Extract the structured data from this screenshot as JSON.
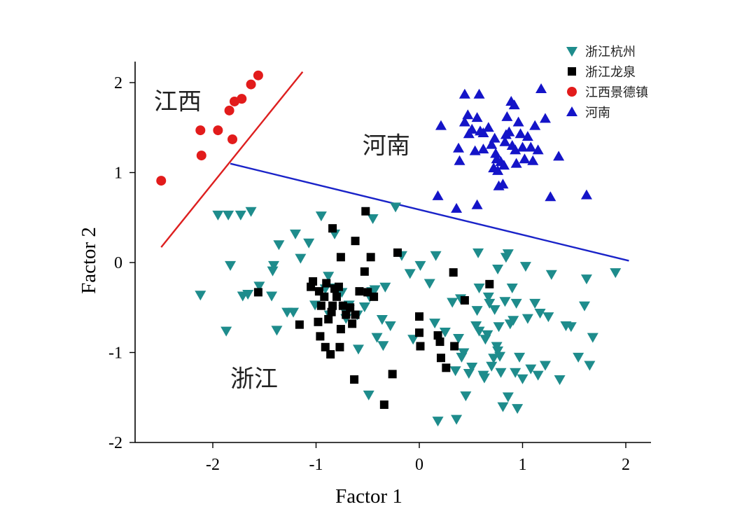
{
  "chart_data": {
    "type": "scatter",
    "xlabel": "Factor 1",
    "ylabel": "Factor 2",
    "xlim": [
      -2.7,
      2.25
    ],
    "ylim": [
      -2,
      2.25
    ],
    "xticks": [
      -2,
      -1,
      0,
      1,
      2
    ],
    "yticks": [
      -2,
      -1,
      0,
      1,
      2
    ],
    "tick_labels_x": [
      "-2",
      "-1",
      "0",
      "1",
      "2"
    ],
    "tick_labels_y": [
      "-2",
      "-1",
      "0",
      "1",
      "2"
    ],
    "grid": false,
    "legend_position": "top-right",
    "region_labels": [
      {
        "text": "江西",
        "x": -2.57,
        "y": 1.7
      },
      {
        "text": "河南",
        "x": -0.55,
        "y": 1.21
      },
      {
        "text": "浙江",
        "x": -1.83,
        "y": -1.38
      }
    ],
    "divider_lines": [
      {
        "color": "#dd1f1f",
        "points": [
          [
            -2.5,
            0.17
          ],
          [
            -1.13,
            2.12
          ]
        ]
      },
      {
        "color": "#1a23c8",
        "points": [
          [
            -1.83,
            1.1
          ],
          [
            2.03,
            0.02
          ]
        ]
      }
    ],
    "series": [
      {
        "name": "浙江杭州",
        "marker": "triangle-down",
        "color": "#1e8c8c",
        "points": [
          [
            -1.95,
            0.53
          ],
          [
            -1.85,
            0.53
          ],
          [
            -1.73,
            0.53
          ],
          [
            -1.63,
            0.57
          ],
          [
            -1.83,
            -0.03
          ],
          [
            -2.12,
            -0.36
          ],
          [
            -1.87,
            -0.76
          ],
          [
            -1.71,
            -0.37
          ],
          [
            -1.66,
            -0.35
          ],
          [
            -1.55,
            -0.26
          ],
          [
            -1.43,
            -0.37
          ],
          [
            -1.42,
            -0.09
          ],
          [
            -1.41,
            -0.03
          ],
          [
            -1.36,
            0.2
          ],
          [
            -1.28,
            -0.55
          ],
          [
            -1.38,
            -0.75
          ],
          [
            -1.22,
            -0.55
          ],
          [
            -1.2,
            0.32
          ],
          [
            -1.15,
            0.05
          ],
          [
            -1.07,
            0.22
          ],
          [
            -1.01,
            -0.47
          ],
          [
            -0.95,
            0.52
          ],
          [
            -0.91,
            -0.29
          ],
          [
            -0.88,
            -0.15
          ],
          [
            -0.87,
            -0.58
          ],
          [
            -0.83,
            -0.28
          ],
          [
            -0.82,
            0.32
          ],
          [
            -0.75,
            -0.33
          ],
          [
            -0.73,
            -0.52
          ],
          [
            -0.71,
            -0.62
          ],
          [
            -0.68,
            -0.47
          ],
          [
            -0.68,
            -0.52
          ],
          [
            -0.6,
            -0.58
          ],
          [
            -0.59,
            -0.96
          ],
          [
            -0.53,
            -0.49
          ],
          [
            -0.49,
            -1.47
          ],
          [
            -0.48,
            -0.38
          ],
          [
            -0.46,
            -0.32
          ],
          [
            -0.45,
            0.49
          ],
          [
            -0.43,
            -0.3
          ],
          [
            -0.41,
            -0.83
          ],
          [
            -0.36,
            -0.63
          ],
          [
            -0.33,
            -0.27
          ],
          [
            -0.35,
            -0.92
          ],
          [
            -0.28,
            -0.7
          ],
          [
            -0.23,
            0.62
          ],
          [
            -0.17,
            0.08
          ],
          [
            -0.09,
            -0.12
          ],
          [
            -0.06,
            -0.85
          ],
          [
            0.01,
            -0.03
          ],
          [
            0.1,
            -0.23
          ],
          [
            0.16,
            0.08
          ],
          [
            0.15,
            -0.67
          ],
          [
            0.18,
            -1.76
          ],
          [
            0.25,
            -0.77
          ],
          [
            0.32,
            -0.44
          ],
          [
            0.35,
            -1.2
          ],
          [
            0.36,
            -1.74
          ],
          [
            0.4,
            -0.4
          ],
          [
            0.41,
            -1.05
          ],
          [
            0.43,
            -1.0
          ],
          [
            0.45,
            -1.48
          ],
          [
            0.48,
            -1.23
          ],
          [
            0.51,
            -1.16
          ],
          [
            0.55,
            -0.7
          ],
          [
            0.57,
            0.11
          ],
          [
            0.58,
            -0.28
          ],
          [
            0.58,
            -0.76
          ],
          [
            0.62,
            -1.25
          ],
          [
            0.63,
            -1.28
          ],
          [
            0.64,
            -0.85
          ],
          [
            0.66,
            -0.8
          ],
          [
            0.68,
            -0.45
          ],
          [
            0.7,
            -1.15
          ],
          [
            0.72,
            -1.06
          ],
          [
            0.73,
            -0.52
          ],
          [
            0.76,
            -0.98
          ],
          [
            0.77,
            -0.71
          ],
          [
            0.78,
            -1.04
          ],
          [
            0.79,
            -1.22
          ],
          [
            0.81,
            -1.6
          ],
          [
            0.83,
            -0.43
          ],
          [
            0.84,
            0.06
          ],
          [
            0.86,
            -1.49
          ],
          [
            0.88,
            -0.68
          ],
          [
            0.9,
            -0.28
          ],
          [
            0.91,
            -0.64
          ],
          [
            0.93,
            -1.22
          ],
          [
            0.94,
            -0.45
          ],
          [
            0.95,
            -1.62
          ],
          [
            0.97,
            -1.05
          ],
          [
            1.0,
            -1.29
          ],
          [
            1.05,
            -0.62
          ],
          [
            1.08,
            -1.18
          ],
          [
            1.12,
            -0.45
          ],
          [
            1.15,
            -1.25
          ],
          [
            1.17,
            -0.56
          ],
          [
            1.22,
            -1.14
          ],
          [
            1.25,
            -0.6
          ],
          [
            1.28,
            -0.13
          ],
          [
            1.36,
            -1.3
          ],
          [
            1.42,
            -0.7
          ],
          [
            1.47,
            -0.71
          ],
          [
            1.54,
            -1.05
          ],
          [
            1.6,
            -0.48
          ],
          [
            1.62,
            -0.18
          ],
          [
            1.65,
            -1.14
          ],
          [
            1.68,
            -0.83
          ],
          [
            1.9,
            -0.11
          ],
          [
            0.38,
            -0.84
          ],
          [
            0.67,
            -0.38
          ],
          [
            0.56,
            -0.53
          ],
          [
            0.76,
            -0.07
          ],
          [
            0.86,
            0.1
          ],
          [
            1.03,
            -0.04
          ],
          [
            0.75,
            -0.93
          ]
        ]
      },
      {
        "name": "浙江龙泉",
        "marker": "square",
        "color": "#000000",
        "points": [
          [
            -0.84,
            0.38
          ],
          [
            -0.62,
            0.24
          ],
          [
            -0.76,
            0.06
          ],
          [
            -0.52,
            0.57
          ],
          [
            -0.47,
            0.06
          ],
          [
            -0.21,
            0.11
          ],
          [
            -0.53,
            -0.1
          ],
          [
            -0.5,
            -0.33
          ],
          [
            -0.44,
            -0.38
          ],
          [
            -1.56,
            -0.33
          ],
          [
            -1.16,
            -0.69
          ],
          [
            -1.05,
            -0.27
          ],
          [
            -1.03,
            -0.21
          ],
          [
            -0.97,
            -0.32
          ],
          [
            -0.95,
            -0.48
          ],
          [
            -0.92,
            -0.38
          ],
          [
            -0.9,
            -0.23
          ],
          [
            -0.88,
            -0.63
          ],
          [
            -0.85,
            -0.55
          ],
          [
            -0.84,
            -0.48
          ],
          [
            -0.82,
            -0.29
          ],
          [
            -0.8,
            -0.38
          ],
          [
            -0.78,
            -0.27
          ],
          [
            -0.76,
            -0.74
          ],
          [
            -0.74,
            -0.48
          ],
          [
            -0.71,
            -0.58
          ],
          [
            -0.67,
            -0.5
          ],
          [
            -0.65,
            -0.68
          ],
          [
            -0.77,
            -0.94
          ],
          [
            -0.86,
            -1.02
          ],
          [
            -0.91,
            -0.94
          ],
          [
            -0.96,
            -0.82
          ],
          [
            -0.98,
            -0.66
          ],
          [
            -0.63,
            -1.3
          ],
          [
            -0.26,
            -1.24
          ],
          [
            -0.34,
            -1.58
          ],
          [
            0.0,
            -0.6
          ],
          [
            0.0,
            -0.78
          ],
          [
            0.01,
            -0.93
          ],
          [
            0.18,
            -0.81
          ],
          [
            0.2,
            -0.88
          ],
          [
            0.21,
            -1.06
          ],
          [
            0.26,
            -1.17
          ],
          [
            0.34,
            -0.93
          ],
          [
            0.33,
            -0.11
          ],
          [
            0.68,
            -0.24
          ],
          [
            0.44,
            -0.42
          ],
          [
            -0.58,
            -0.32
          ],
          [
            -0.62,
            -0.58
          ]
        ]
      },
      {
        "name": "江西景德镇",
        "marker": "circle",
        "color": "#e21b1b",
        "points": [
          [
            -1.56,
            2.08
          ],
          [
            -1.63,
            1.98
          ],
          [
            -1.72,
            1.82
          ],
          [
            -1.79,
            1.79
          ],
          [
            -1.84,
            1.69
          ],
          [
            -1.81,
            1.37
          ],
          [
            -1.95,
            1.47
          ],
          [
            -2.12,
            1.47
          ],
          [
            -2.11,
            1.19
          ],
          [
            -2.5,
            0.91
          ]
        ]
      },
      {
        "name": "河南",
        "marker": "triangle-up",
        "color": "#1414c8",
        "points": [
          [
            0.44,
            1.87
          ],
          [
            0.58,
            1.87
          ],
          [
            0.47,
            1.64
          ],
          [
            0.56,
            1.61
          ],
          [
            0.44,
            1.56
          ],
          [
            0.51,
            1.48
          ],
          [
            0.59,
            1.46
          ],
          [
            0.48,
            1.43
          ],
          [
            0.62,
            1.44
          ],
          [
            0.67,
            1.5
          ],
          [
            0.21,
            1.52
          ],
          [
            0.38,
            1.27
          ],
          [
            0.39,
            1.13
          ],
          [
            0.54,
            1.24
          ],
          [
            0.62,
            1.26
          ],
          [
            0.73,
            1.38
          ],
          [
            0.74,
            1.21
          ],
          [
            0.75,
            1.15
          ],
          [
            0.76,
            1.02
          ],
          [
            0.79,
            1.12
          ],
          [
            0.77,
            0.85
          ],
          [
            0.81,
            0.87
          ],
          [
            0.82,
            1.08
          ],
          [
            0.83,
            1.34
          ],
          [
            0.85,
            1.62
          ],
          [
            0.87,
            1.45
          ],
          [
            0.89,
            1.79
          ],
          [
            0.9,
            1.3
          ],
          [
            0.92,
            1.75
          ],
          [
            0.93,
            1.25
          ],
          [
            0.94,
            1.1
          ],
          [
            0.96,
            1.56
          ],
          [
            0.98,
            1.43
          ],
          [
            1.0,
            1.28
          ],
          [
            1.02,
            1.15
          ],
          [
            1.05,
            1.4
          ],
          [
            1.1,
            1.13
          ],
          [
            1.12,
            1.52
          ],
          [
            1.15,
            1.25
          ],
          [
            1.18,
            1.93
          ],
          [
            1.22,
            1.6
          ],
          [
            1.27,
            0.73
          ],
          [
            1.35,
            1.18
          ],
          [
            1.62,
            0.75
          ],
          [
            0.18,
            0.74
          ],
          [
            0.36,
            0.6
          ],
          [
            0.56,
            0.64
          ],
          [
            0.7,
            1.31
          ],
          [
            0.72,
            1.05
          ],
          [
            0.84,
            1.42
          ],
          [
            1.08,
            1.28
          ]
        ]
      }
    ]
  }
}
